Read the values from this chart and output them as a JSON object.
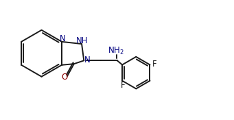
{
  "bg_color": "#ffffff",
  "line_color": "#1a1a1a",
  "N_color": "#000080",
  "O_color": "#8b0000",
  "F_color": "#1a1a1a",
  "line_width": 1.4,
  "font_size": 8.5,
  "fig_width": 3.41,
  "fig_height": 1.75,
  "dpi": 100,
  "xlim": [
    0.0,
    10.5
  ],
  "ylim": [
    0.0,
    5.2
  ]
}
